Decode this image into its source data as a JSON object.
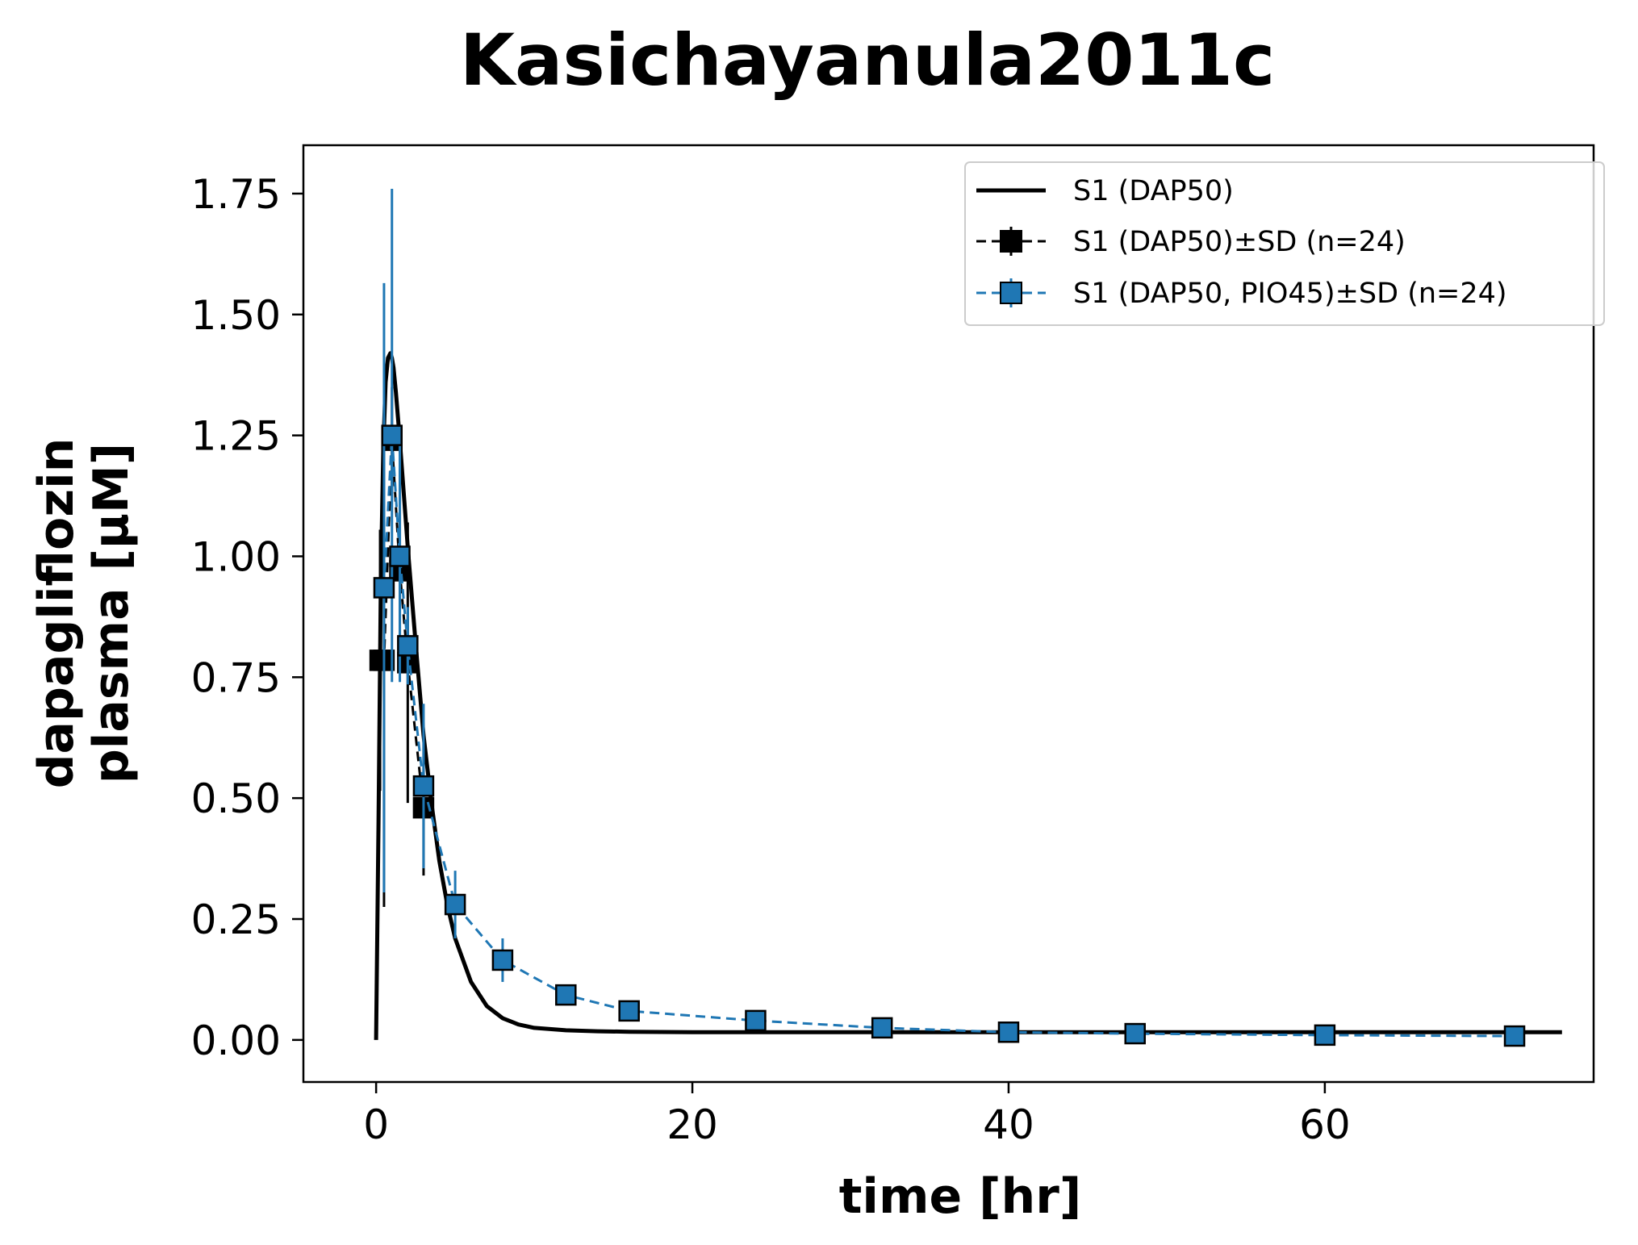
{
  "chart_data": {
    "type": "line",
    "title": "Kasichayanula2011c",
    "xlabel": "time [hr]",
    "ylabel_lines": [
      "dapagliflozin",
      "plasma [μM]"
    ],
    "xlim": [
      -4.6,
      77.0
    ],
    "ylim": [
      -0.087,
      1.85
    ],
    "xticks": [
      0,
      20,
      40,
      60
    ],
    "xtick_labels": [
      "0",
      "20",
      "40",
      "60"
    ],
    "yticks": [
      0.0,
      0.25,
      0.5,
      0.75,
      1.0,
      1.25,
      1.5,
      1.75
    ],
    "ytick_labels": [
      "0.00",
      "0.25",
      "0.50",
      "0.75",
      "1.00",
      "1.25",
      "1.50",
      "1.75"
    ],
    "grid": false,
    "legend_position": "top-right",
    "series": [
      {
        "name": "S1 (DAP50)",
        "kind": "line",
        "color": "#000000",
        "x": [
          0,
          0.15,
          0.3,
          0.45,
          0.6,
          0.75,
          0.9,
          1.0,
          1.1,
          1.25,
          1.5,
          1.75,
          2.0,
          2.5,
          3.0,
          3.5,
          4.0,
          4.5,
          5.0,
          6.0,
          7.0,
          8.0,
          9.0,
          10.0,
          12.0,
          14.0,
          16.0,
          20.0,
          30.0,
          40.0,
          50.0,
          60.0,
          70.0,
          75.0
        ],
        "y": [
          0.0,
          0.45,
          0.95,
          1.22,
          1.36,
          1.41,
          1.42,
          1.41,
          1.39,
          1.34,
          1.24,
          1.13,
          1.02,
          0.82,
          0.63,
          0.49,
          0.37,
          0.28,
          0.21,
          0.12,
          0.07,
          0.045,
          0.032,
          0.025,
          0.02,
          0.018,
          0.017,
          0.016,
          0.016,
          0.016,
          0.016,
          0.016,
          0.016,
          0.016
        ]
      },
      {
        "name": "S1 (DAP50)±SD (n=24)",
        "kind": "errorbar",
        "color": "#000000",
        "marker_color": "#000000",
        "x": [
          0.25,
          0.5,
          1.0,
          1.5,
          2.0,
          3.0
        ],
        "y": [
          0.785,
          0.785,
          1.24,
          0.97,
          0.78,
          0.48
        ],
        "yerr": [
          0.27,
          0.51,
          0.11,
          0.21,
          0.29,
          0.14
        ]
      },
      {
        "name": "S1 (DAP50, PIO45)±SD (n=24)",
        "kind": "errorbar",
        "color": "#1f77b4",
        "marker_color": "#1f77b4",
        "x": [
          0.5,
          1.0,
          1.5,
          2.0,
          3.0,
          5.0,
          8.0,
          12.0,
          16.0,
          24.0,
          32.0,
          40.0,
          48.0,
          60.0,
          72.0
        ],
        "y": [
          0.935,
          1.25,
          1.0,
          0.815,
          0.525,
          0.28,
          0.165,
          0.093,
          0.06,
          0.04,
          0.025,
          0.016,
          0.013,
          0.01,
          0.008
        ],
        "yerr": [
          0.63,
          0.51,
          0.26,
          0.08,
          0.17,
          0.07,
          0.045,
          0.02,
          0.012,
          0.008,
          0.005,
          0.004,
          0.003,
          0.003,
          0.002
        ]
      }
    ]
  }
}
